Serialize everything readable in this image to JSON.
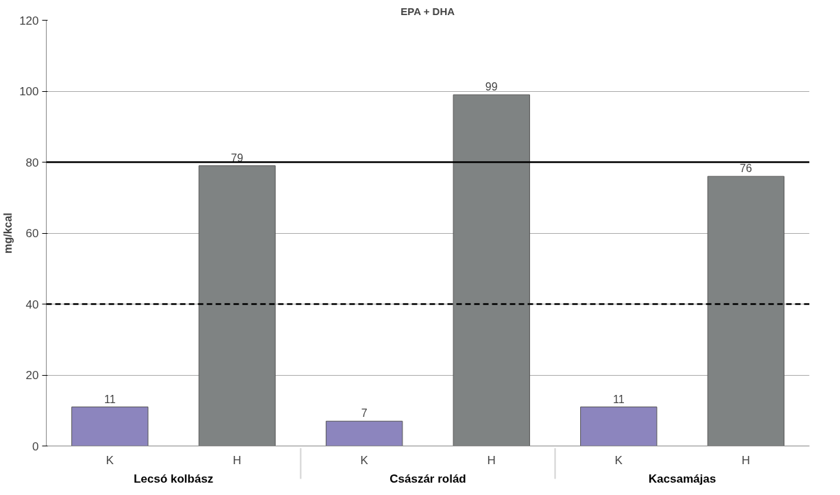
{
  "chart_data": {
    "type": "bar",
    "title": "EPA + DHA",
    "ylabel": "mg/kcal",
    "categories": [
      "K",
      "H",
      "K",
      "H",
      "K",
      "H"
    ],
    "values": [
      11,
      79,
      7,
      99,
      11,
      76
    ],
    "colors": [
      "#8c85be",
      "#7f8383",
      "#8c85be",
      "#7f8383",
      "#8c85be",
      "#7f8383"
    ],
    "data_labels": true,
    "annotations": [
      "Lecsó kolbász",
      "Császár rolád",
      "Kacsamájas"
    ],
    "ylim": [
      0,
      120
    ],
    "yticks": [
      0,
      20,
      40,
      60,
      80,
      100,
      120
    ],
    "grid": "y",
    "ref_lines": [
      {
        "axis": "y",
        "value": 80,
        "color": "#000000",
        "line_style": "solid"
      },
      {
        "axis": "y",
        "value": 40,
        "color": "#000000",
        "line_style": "dashed"
      }
    ]
  }
}
